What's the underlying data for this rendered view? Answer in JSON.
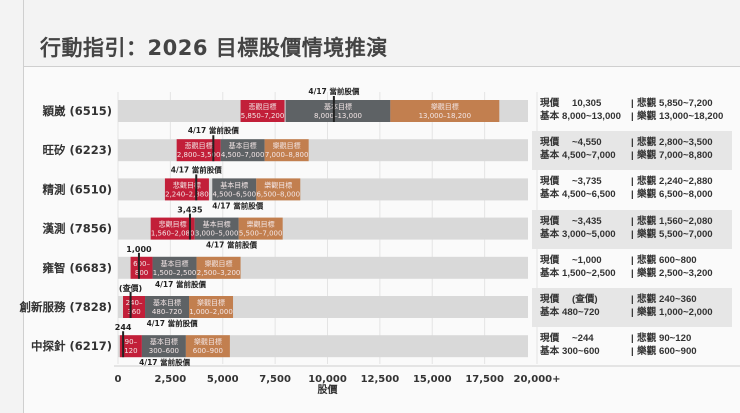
{
  "title": "行動指引：2026 目標股價情境推演",
  "colors": {
    "pessimistic": "#c21f39",
    "base": "#5e6265",
    "optimistic": "#c27f4f",
    "track": "#d9d9d9",
    "marker": "#222222"
  },
  "chart_data": {
    "type": "bar",
    "subtype": "horizontal-range",
    "xlabel": "股價",
    "xlim": [
      0,
      20000
    ],
    "xticks": [
      "0",
      "2,500",
      "5,000",
      "7,500",
      "10,000",
      "12,500",
      "15,000",
      "17,500",
      "20,000+"
    ],
    "xtick_values": [
      0,
      2500,
      5000,
      7500,
      10000,
      12500,
      15000,
      17500,
      20000
    ],
    "grid": true,
    "segment_titles": {
      "pessimistic": "悲觀目標",
      "base": "基本目標",
      "optimistic": "樂觀目標"
    },
    "marker_label": "4/17 當前股價",
    "rows": [
      {
        "label": "穎崴 (6515)",
        "price": 10305,
        "pess": [
          5850,
          7200
        ],
        "base": [
          8000,
          13000
        ],
        "opt": [
          13000,
          18200
        ],
        "pess_text": "5,850–7,200",
        "base_text": "8,000–13,000",
        "opt_text": "13,000–18,200",
        "pess_title": "悲觀目標",
        "value_label": "",
        "label_pos": [
          "above"
        ]
      },
      {
        "label": "旺矽 (6223)",
        "price": 4550,
        "pess": [
          2800,
          3500
        ],
        "base": [
          4500,
          7000
        ],
        "opt": [
          7000,
          8800
        ],
        "pess_text": "2,800–3,500",
        "base_text": "4,500–7,000",
        "opt_text": "7,000–8,800",
        "pess_title": "悲觀目標",
        "value_label": "",
        "label_pos": [
          "above"
        ]
      },
      {
        "label": "精測 (6510)",
        "price": 3735,
        "pess": [
          2240,
          2880
        ],
        "base": [
          4500,
          6500
        ],
        "opt": [
          6500,
          8000
        ],
        "pess_text": "2,240–2,880",
        "base_text": "4,500–6,500",
        "opt_text": "6,500–8,000",
        "pess_title": "悲觀目標",
        "value_label": "",
        "label_pos": [
          "above",
          "below"
        ]
      },
      {
        "label": "漢測 (7856)",
        "price": 3435,
        "pess": [
          1560,
          2080
        ],
        "base": [
          3000,
          5000
        ],
        "opt": [
          5500,
          7000
        ],
        "pess_text": "1,560–2,080",
        "base_text": "3,000–5,000",
        "opt_text": "5,500–7,000",
        "pess_title": "悲觀目標",
        "value_label": "3,435",
        "label_pos": [
          "below"
        ]
      },
      {
        "label": "雍智 (6683)",
        "price": 1000,
        "pess": [
          600,
          800
        ],
        "base": [
          1500,
          2500
        ],
        "opt": [
          2500,
          3200
        ],
        "pess_text": "600–\n800",
        "base_text": "1,500–2,500",
        "opt_text": "2,500–3,200",
        "pess_title": "",
        "value_label": "1,000",
        "label_pos": [
          "below"
        ]
      },
      {
        "label": "創新服務 (7828)",
        "price": 600,
        "pess": [
          240,
          360
        ],
        "base": [
          480,
          720
        ],
        "opt": [
          1000,
          2000
        ],
        "pess_text": "240–\n360",
        "base_text": "480–720",
        "opt_text": "1,000–2,000",
        "pess_title": "",
        "value_label": "(查價)",
        "label_pos": [
          "below"
        ]
      },
      {
        "label": "中探針 (6217)",
        "price": 244,
        "pess": [
          90,
          120
        ],
        "base": [
          300,
          600
        ],
        "opt": [
          600,
          900
        ],
        "pess_text": "90–\n120",
        "base_text": "300–600",
        "opt_text": "600–900",
        "pess_title": "",
        "value_label": "244",
        "label_pos": [
          "below"
        ]
      }
    ]
  },
  "summary": {
    "labels": {
      "current": "現價",
      "base": "基本",
      "pess": "悲觀",
      "opt": "樂觀"
    },
    "rows": [
      {
        "current": "10,305",
        "base": "8,000~13,000",
        "pess": "5,850~7,200",
        "opt": "13,000~18,200"
      },
      {
        "current": "~4,550",
        "base": "4,500~7,000",
        "pess": "2,800~3,500",
        "opt": "7,000~8,800"
      },
      {
        "current": "~3,735",
        "base": "4,500~6,500",
        "pess": "2,240~2,880",
        "opt": "6,500~8,000"
      },
      {
        "current": "~3,435",
        "base": "3,000~5,000",
        "pess": "1,560~2,080",
        "opt": "5,500~7,000"
      },
      {
        "current": "~1,000",
        "base": "1,500~2,500",
        "pess": "600~800",
        "opt": "2,500~3,200"
      },
      {
        "current": "(查價)",
        "base": "480~720",
        "pess": "240~360",
        "opt": "1,000~2,000"
      },
      {
        "current": "~244",
        "base": "300~600",
        "pess": "90~120",
        "opt": "600~900"
      }
    ]
  }
}
